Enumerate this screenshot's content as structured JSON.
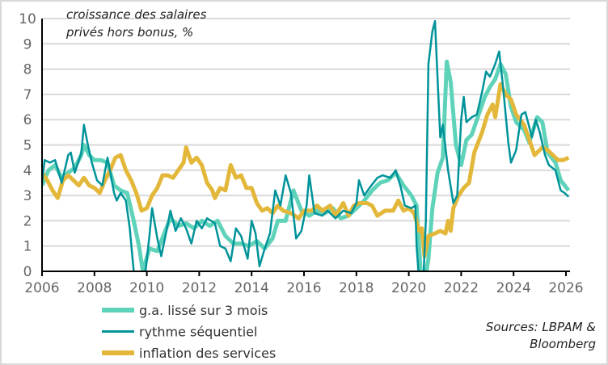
{
  "chart_data": {
    "type": "line",
    "title": "croissance des salaires privés hors bonus, %",
    "title_lines": [
      "croissance des salaires",
      "privés hors bonus, %"
    ],
    "xlim": [
      2006,
      2026.2
    ],
    "ylim": [
      0,
      10
    ],
    "x_ticks": [
      "2006",
      "2008",
      "2010",
      "2012",
      "2014",
      "2016",
      "2018",
      "2020",
      "2022",
      "2024",
      "2026"
    ],
    "y_ticks": [
      "0",
      "1",
      "2",
      "3",
      "4",
      "5",
      "6",
      "7",
      "8",
      "9",
      "10"
    ],
    "grid": "horizontal",
    "legend_placement": "bottom-left",
    "source": [
      "Sources: LBPAM &",
      "Bloomberg"
    ],
    "series": [
      {
        "name": "g.a. lissé sur 3 mois",
        "color": "#5fd3b9",
        "x": [
          2006.0,
          2006.25,
          2006.5,
          2006.75,
          2007.0,
          2007.25,
          2007.5,
          2007.6,
          2007.8,
          2008.0,
          2008.25,
          2008.5,
          2008.75,
          2009.0,
          2009.25,
          2009.5,
          2009.7,
          2009.85,
          2010.1,
          2010.4,
          2010.7,
          2010.9,
          2011.2,
          2011.5,
          2011.8,
          2012.1,
          2012.4,
          2012.7,
          2013.0,
          2013.3,
          2013.6,
          2013.9,
          2014.2,
          2014.5,
          2014.8,
          2015.0,
          2015.3,
          2015.6,
          2015.9,
          2016.2,
          2016.5,
          2016.8,
          2017.1,
          2017.4,
          2017.7,
          2018.0,
          2018.3,
          2018.6,
          2018.9,
          2019.2,
          2019.5,
          2019.8,
          2020.1,
          2020.3,
          2020.45,
          2020.6,
          2020.75,
          2020.9,
          2021.1,
          2021.3,
          2021.45,
          2021.6,
          2021.8,
          2022.0,
          2022.2,
          2022.4,
          2022.7,
          2022.9,
          2023.1,
          2023.3,
          2023.5,
          2023.7,
          2023.9,
          2024.1,
          2024.4,
          2024.6,
          2024.9,
          2025.1,
          2025.3,
          2025.6,
          2025.8,
          2026.1
        ],
        "values": [
          3.4,
          4.0,
          4.2,
          3.7,
          3.9,
          4.1,
          4.6,
          5.0,
          4.6,
          4.4,
          4.4,
          4.3,
          3.4,
          3.2,
          3.1,
          2.0,
          1.0,
          0.0,
          0.9,
          0.8,
          1.6,
          2.1,
          1.8,
          1.9,
          1.7,
          2.0,
          1.8,
          2.0,
          1.4,
          1.1,
          1.1,
          1.0,
          1.2,
          0.9,
          1.3,
          2.0,
          2.0,
          3.2,
          2.4,
          2.2,
          2.4,
          2.3,
          2.5,
          2.1,
          2.2,
          2.5,
          2.8,
          3.2,
          3.5,
          3.6,
          3.9,
          3.4,
          3.0,
          2.6,
          0.0,
          -0.5,
          0.5,
          2.5,
          3.9,
          4.5,
          8.3,
          7.5,
          5.0,
          4.2,
          5.2,
          5.4,
          6.3,
          6.9,
          7.3,
          7.6,
          8.2,
          7.8,
          6.5,
          5.9,
          5.6,
          5.1,
          6.1,
          5.9,
          4.7,
          4.3,
          3.6,
          3.2
        ]
      },
      {
        "name": "rythme séquentiel",
        "color": "#00939a",
        "x": [
          2006.0,
          2006.1,
          2006.3,
          2006.5,
          2006.75,
          2007.0,
          2007.1,
          2007.25,
          2007.5,
          2007.6,
          2007.75,
          2007.9,
          2008.1,
          2008.3,
          2008.5,
          2008.75,
          2008.85,
          2009.0,
          2009.2,
          2009.35,
          2009.5,
          2009.7,
          2009.95,
          2010.1,
          2010.2,
          2010.4,
          2010.55,
          2010.75,
          2010.9,
          2011.1,
          2011.3,
          2011.5,
          2011.7,
          2011.9,
          2012.1,
          2012.3,
          2012.6,
          2012.8,
          2013.0,
          2013.2,
          2013.4,
          2013.6,
          2013.85,
          2014.0,
          2014.15,
          2014.3,
          2014.5,
          2014.7,
          2014.9,
          2015.1,
          2015.3,
          2015.5,
          2015.7,
          2015.9,
          2016.1,
          2016.2,
          2016.4,
          2016.7,
          2016.9,
          2017.2,
          2017.5,
          2017.8,
          2018.0,
          2018.1,
          2018.3,
          2018.5,
          2018.8,
          2019.0,
          2019.3,
          2019.5,
          2019.7,
          2019.85,
          2020.1,
          2020.25,
          2020.3,
          2020.4,
          2020.55,
          2020.65,
          2020.75,
          2020.9,
          2021.0,
          2021.2,
          2021.3,
          2021.5,
          2021.7,
          2021.85,
          2022.0,
          2022.1,
          2022.2,
          2022.4,
          2022.6,
          2022.8,
          2022.95,
          2023.1,
          2023.3,
          2023.45,
          2023.6,
          2023.8,
          2023.9,
          2024.1,
          2024.3,
          2024.45,
          2024.7,
          2024.85,
          2025.0,
          2025.2,
          2025.35,
          2025.6,
          2025.8,
          2025.95,
          2026.1
        ],
        "values": [
          3.5,
          4.4,
          4.3,
          4.4,
          3.5,
          4.6,
          4.7,
          3.9,
          4.7,
          5.8,
          5.0,
          4.3,
          3.6,
          3.4,
          4.5,
          3.1,
          2.8,
          3.1,
          2.8,
          1.7,
          0.0,
          -0.3,
          0.0,
          1.4,
          2.5,
          1.3,
          0.6,
          1.6,
          2.4,
          1.6,
          2.1,
          1.7,
          1.1,
          2.0,
          1.7,
          2.1,
          1.9,
          1.0,
          0.9,
          0.4,
          1.7,
          1.4,
          0.5,
          2.0,
          1.5,
          0.2,
          0.9,
          1.5,
          3.2,
          2.6,
          3.8,
          3.1,
          1.3,
          1.6,
          2.6,
          3.8,
          2.3,
          2.2,
          2.4,
          2.1,
          2.4,
          2.3,
          2.7,
          3.6,
          3.0,
          3.3,
          3.7,
          3.8,
          3.7,
          4.0,
          3.3,
          2.6,
          2.5,
          2.6,
          1.0,
          -0.5,
          -0.5,
          2.0,
          8.2,
          9.5,
          9.9,
          5.3,
          5.8,
          4.0,
          2.7,
          3.0,
          6.0,
          6.9,
          5.9,
          6.1,
          6.2,
          7.1,
          7.9,
          7.7,
          8.2,
          8.7,
          7.3,
          5.1,
          4.3,
          4.8,
          6.2,
          6.3,
          5.3,
          6.0,
          5.5,
          4.6,
          4.2,
          4.0,
          3.2,
          3.1,
          2.95
        ]
      },
      {
        "name": "inflation des services",
        "color": "#e3b83a",
        "x": [
          2006.0,
          2006.2,
          2006.4,
          2006.6,
          2006.8,
          2007.0,
          2007.2,
          2007.4,
          2007.6,
          2007.8,
          2008.0,
          2008.2,
          2008.4,
          2008.6,
          2008.8,
          2009.0,
          2009.2,
          2009.4,
          2009.6,
          2009.8,
          2010.0,
          2010.2,
          2010.4,
          2010.6,
          2010.8,
          2011.0,
          2011.2,
          2011.4,
          2011.5,
          2011.7,
          2011.9,
          2012.1,
          2012.3,
          2012.5,
          2012.6,
          2012.8,
          2013.0,
          2013.2,
          2013.4,
          2013.6,
          2013.8,
          2014.0,
          2014.2,
          2014.4,
          2014.6,
          2014.8,
          2015.0,
          2015.2,
          2015.5,
          2015.8,
          2016.0,
          2016.3,
          2016.5,
          2016.7,
          2017.0,
          2017.2,
          2017.5,
          2017.7,
          2017.9,
          2018.1,
          2018.4,
          2018.6,
          2018.8,
          2019.1,
          2019.4,
          2019.6,
          2019.8,
          2020.0,
          2020.2,
          2020.4,
          2020.5,
          2020.6,
          2020.75,
          2021.0,
          2021.2,
          2021.4,
          2021.5,
          2021.6,
          2021.7,
          2021.9,
          2022.1,
          2022.3,
          2022.5,
          2022.8,
          2023.0,
          2023.2,
          2023.3,
          2023.5,
          2023.7,
          2023.9,
          2024.1,
          2024.4,
          2024.6,
          2024.8,
          2024.9,
          2025.1,
          2025.3,
          2025.5,
          2025.7,
          2025.9,
          2026.1
        ],
        "values": [
          3.9,
          3.6,
          3.2,
          2.9,
          3.6,
          3.8,
          3.6,
          3.4,
          3.7,
          3.4,
          3.3,
          3.1,
          3.6,
          4.0,
          4.5,
          4.6,
          4.0,
          3.6,
          3.1,
          2.4,
          2.5,
          3.0,
          3.3,
          3.8,
          3.8,
          3.7,
          4.0,
          4.3,
          4.9,
          4.3,
          4.5,
          4.2,
          3.5,
          3.2,
          2.9,
          3.3,
          3.2,
          4.2,
          3.7,
          3.8,
          3.3,
          3.3,
          2.7,
          2.4,
          2.5,
          2.3,
          2.6,
          2.4,
          2.3,
          2.1,
          2.4,
          2.4,
          2.6,
          2.4,
          2.6,
          2.2,
          2.7,
          2.2,
          2.6,
          2.7,
          2.7,
          2.6,
          2.2,
          2.4,
          2.4,
          2.8,
          2.4,
          2.5,
          2.3,
          1.6,
          1.7,
          0.6,
          1.4,
          1.5,
          1.6,
          1.5,
          2.0,
          1.6,
          2.5,
          3.0,
          3.3,
          3.5,
          4.7,
          5.5,
          6.2,
          6.6,
          6.1,
          7.4,
          7.0,
          6.8,
          6.2,
          5.8,
          5.2,
          4.6,
          4.7,
          4.9,
          4.8,
          4.6,
          4.4,
          4.4,
          4.5
        ]
      }
    ]
  }
}
